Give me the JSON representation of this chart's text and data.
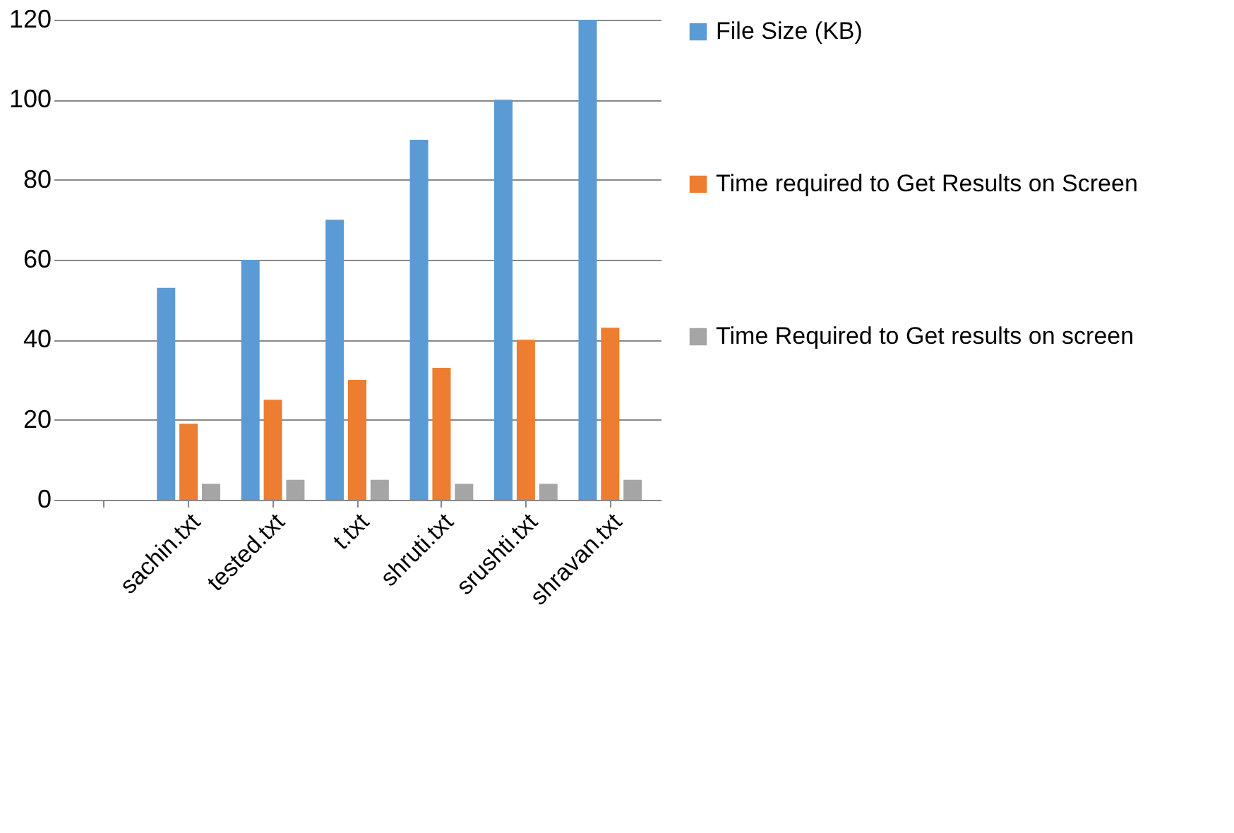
{
  "chart_data": {
    "type": "bar",
    "categories": [
      null,
      "sachin.txt",
      "tested.txt",
      "t.txt",
      "shruti.txt",
      "srushti.txt",
      "shravan.txt"
    ],
    "series": [
      {
        "name": "File Size (KB)",
        "color": "#5b9bd5",
        "values": [
          null,
          53,
          60,
          70,
          90,
          100,
          120
        ]
      },
      {
        "name": "Time required to Get Results on Screen",
        "color": "#ed7d31",
        "values": [
          0,
          19,
          25,
          30,
          33,
          40,
          43
        ]
      },
      {
        "name": "Time Required to Get results on screen",
        "color": "#a5a5a5",
        "values": [
          null,
          4,
          5,
          5,
          4,
          4,
          5
        ]
      }
    ],
    "ylim": [
      0,
      120
    ],
    "yticks": [
      0,
      20,
      40,
      60,
      80,
      100,
      120
    ],
    "grid": "y",
    "legend": "right"
  }
}
